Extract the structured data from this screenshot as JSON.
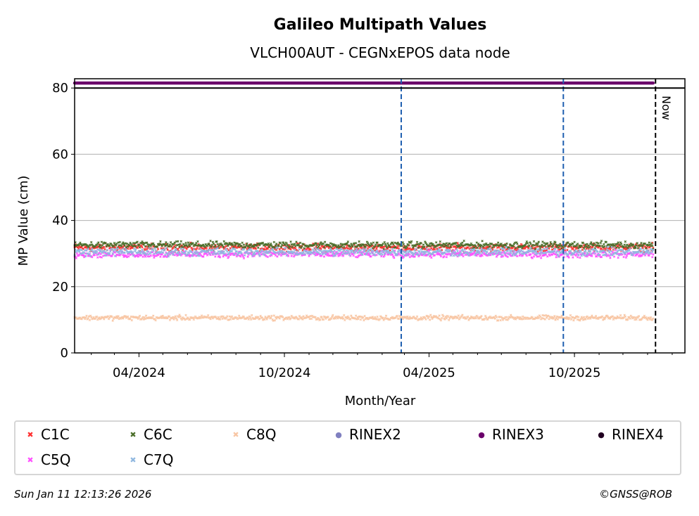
{
  "chart_data": {
    "type": "scatter",
    "title": "Galileo Multipath Values",
    "subtitle": "VLCH00AUT - CEGNxEPOS data node",
    "xlabel": "Month/Year",
    "ylabel": "MP Value (cm)",
    "ylim": [
      0,
      82.8
    ],
    "xlim": [
      "2024-01-11",
      "2026-02-17"
    ],
    "yticks": [
      0,
      20,
      40,
      60,
      80
    ],
    "xticks": [
      {
        "date": "2024-04-01",
        "label": "04/2024"
      },
      {
        "date": "2024-10-01",
        "label": "10/2024"
      },
      {
        "date": "2025-04-01",
        "label": "04/2025"
      },
      {
        "date": "2025-10-01",
        "label": "10/2025"
      }
    ],
    "grid": "y",
    "data_range": [
      "2024-01-11",
      "2026-01-08"
    ],
    "series": [
      {
        "name": "C1C",
        "color": "#ff3030",
        "marker": "x",
        "mean": 31.8,
        "spread": 0.8
      },
      {
        "name": "C6C",
        "color": "#4a6e2a",
        "marker": "x",
        "mean": 32.6,
        "spread": 0.7
      },
      {
        "name": "C8Q",
        "color": "#f8c6a4",
        "marker": "x",
        "mean": 10.6,
        "spread": 0.5
      },
      {
        "name": "RINEX2",
        "color": "#8080c0",
        "marker": "o"
      },
      {
        "name": "RINEX3",
        "color": "#6b006b",
        "marker": "o",
        "mean": 81.5,
        "spread": 0
      },
      {
        "name": "RINEX4",
        "color": "#200020",
        "marker": "o"
      },
      {
        "name": "C5Q",
        "color": "#ff50ff",
        "marker": "x",
        "mean": 29.8,
        "spread": 0.7
      },
      {
        "name": "C7Q",
        "color": "#90b8e0",
        "marker": "x",
        "mean": 30.5,
        "spread": 0.8
      }
    ],
    "events": [
      {
        "date": "2025-02-25",
        "color": "#1f5fb0"
      },
      {
        "date": "2025-09-17",
        "color": "#1f5fb0"
      }
    ],
    "now": {
      "date": "2026-01-11",
      "label": "Now"
    },
    "threshold": 80
  },
  "footer": {
    "timestamp": "Sun Jan 11 12:13:26 2026",
    "credit": "©GNSS@ROB"
  }
}
